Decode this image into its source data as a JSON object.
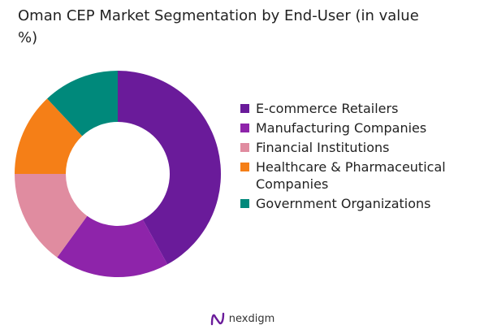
{
  "chart_data": {
    "type": "pie",
    "title": "Oman CEP Market Segmentation by End-User (in value %)",
    "donut": true,
    "legend_position": "right",
    "categories": [
      "E-commerce Retailers",
      "Manufacturing Companies",
      "Financial Institutions",
      "Healthcare & Pharmaceutical Companies",
      "Government Organizations"
    ],
    "values": [
      42,
      18,
      15,
      13,
      12
    ],
    "colors": [
      "#6a1b9a",
      "#8e24aa",
      "#e08ca0",
      "#f57f17",
      "#00897b"
    ]
  },
  "brand": {
    "name": "nexdigm",
    "icon": "nexdigm-logo-icon"
  }
}
